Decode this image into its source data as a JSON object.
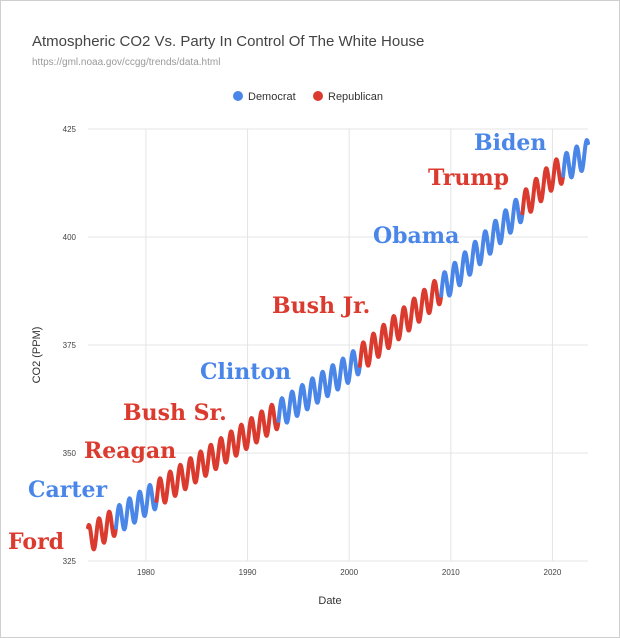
{
  "header": {
    "title": "Atmospheric CO2 Vs. Party In Control Of The White House",
    "subtitle": "https://gml.noaa.gov/ccgg/trends/data.html"
  },
  "colors": {
    "democrat": "#4a86e8",
    "republican": "#db3a2e",
    "grid": "#e4e4e4"
  },
  "chart_data": {
    "type": "line",
    "title": "Atmospheric CO2 Vs. Party In Control Of The White House",
    "subtitle": "https://gml.noaa.gov/ccgg/trends/data.html",
    "xlabel": "Date",
    "ylabel": "CO2 (PPM)",
    "xlim": [
      1974.3,
      2023.5
    ],
    "ylim": [
      325,
      425
    ],
    "xticks": [
      "1980",
      "1990",
      "2000",
      "2010",
      "2020"
    ],
    "yticks": [
      "325",
      "350",
      "375",
      "400",
      "425"
    ],
    "grid": true,
    "legend_position": "top",
    "seasonal_amplitude": 3.2,
    "trend": {
      "x": [
        1974.3,
        1980,
        1990,
        2000,
        2010,
        2020,
        2023.5
      ],
      "y": [
        330.0,
        338.8,
        354.3,
        369.6,
        389.9,
        414.2,
        419.4
      ]
    },
    "series": [
      {
        "name": "Democrat",
        "color": "#4a86e8"
      },
      {
        "name": "Republican",
        "color": "#db3a2e"
      }
    ],
    "terms": [
      {
        "president": "Ford",
        "party": "Republican",
        "start": 1974.3,
        "end": 1977.05
      },
      {
        "president": "Carter",
        "party": "Democrat",
        "start": 1977.05,
        "end": 1981.05
      },
      {
        "president": "Reagan",
        "party": "Republican",
        "start": 1981.05,
        "end": 1989.05
      },
      {
        "president": "Bush Sr.",
        "party": "Republican",
        "start": 1989.05,
        "end": 1993.05
      },
      {
        "president": "Clinton",
        "party": "Democrat",
        "start": 1993.05,
        "end": 2001.05
      },
      {
        "president": "Bush Jr.",
        "party": "Republican",
        "start": 2001.05,
        "end": 2009.05
      },
      {
        "president": "Obama",
        "party": "Democrat",
        "start": 2009.05,
        "end": 2017.05
      },
      {
        "president": "Trump",
        "party": "Republican",
        "start": 2017.05,
        "end": 2021.05
      },
      {
        "president": "Biden",
        "party": "Democrat",
        "start": 2021.05,
        "end": 2023.5
      }
    ]
  }
}
